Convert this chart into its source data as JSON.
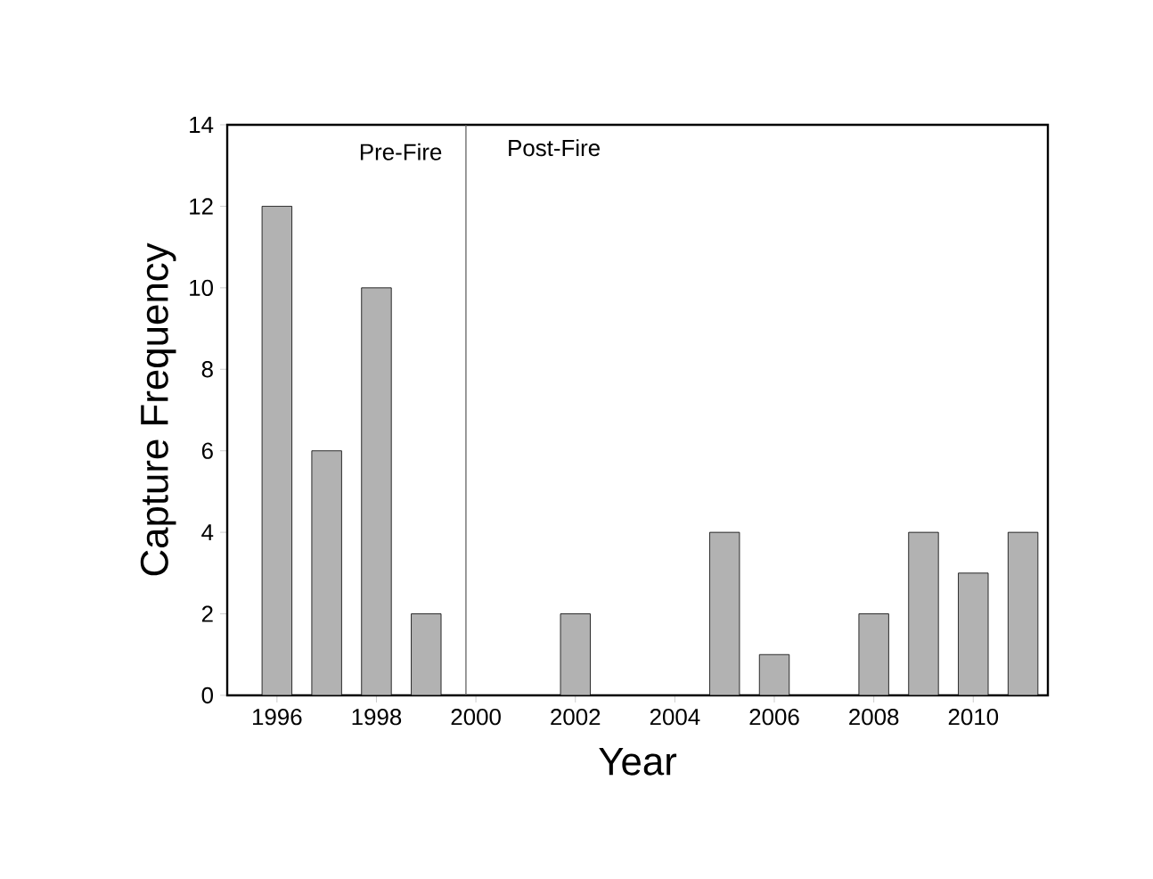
{
  "chart_data": {
    "type": "bar",
    "xlabel": "Year",
    "ylabel": "Capture Frequency",
    "x": [
      1996,
      1997,
      1998,
      1999,
      2002,
      2005,
      2006,
      2008,
      2009,
      2010,
      2011
    ],
    "values": [
      12,
      6,
      10,
      2,
      2,
      4,
      1,
      2,
      4,
      3,
      4
    ],
    "color": "#b2b2b2",
    "xlim": [
      1995,
      2011.5
    ],
    "xticks": [
      1996,
      1998,
      2000,
      2002,
      2004,
      2006,
      2008,
      2010
    ],
    "ylim": [
      0,
      14
    ],
    "yticks": [
      0,
      2,
      4,
      6,
      8,
      10,
      12,
      14
    ],
    "ref_lines": [
      {
        "axis": "x",
        "value": 1999.8,
        "color": "#555555"
      }
    ],
    "annotations": [
      "Pre-Fire",
      "Post-Fire"
    ],
    "grid": false
  }
}
